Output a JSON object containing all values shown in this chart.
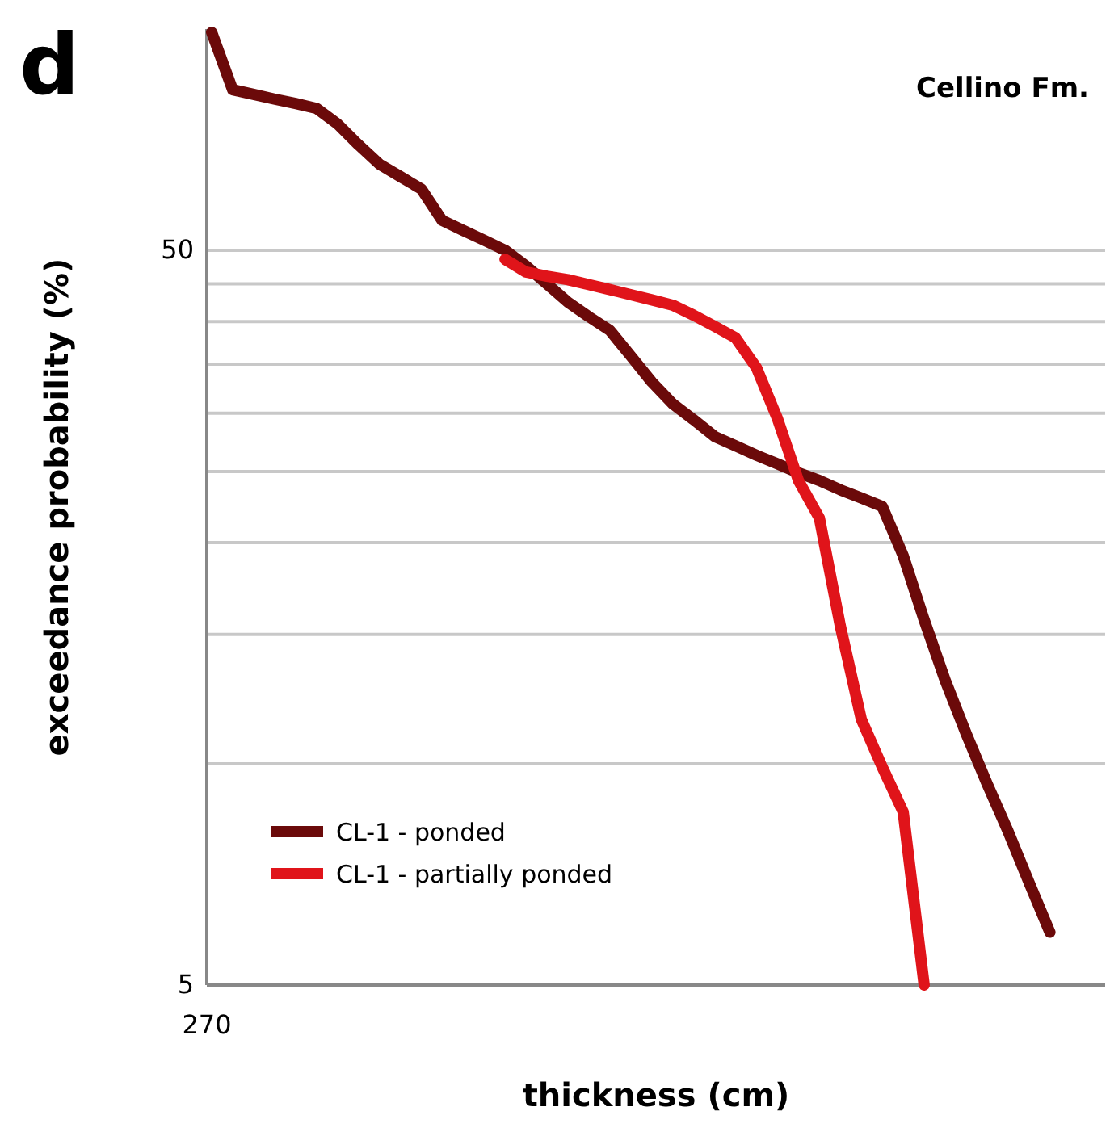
{
  "chart_data": {
    "type": "line",
    "title": "d",
    "xlabel": "thickness (cm)",
    "ylabel": "exceedance probability (%)",
    "annotations": [
      "Cellino Fm.",
      "270"
    ],
    "log": "y",
    "grid": "y",
    "legend": "bottom left",
    "line_style": "solid",
    "marker": "none",
    "categories": [
      null,
      null,
      null,
      null,
      null,
      null,
      null,
      null,
      null,
      null,
      null,
      null,
      null,
      null,
      null,
      null,
      null,
      null,
      null,
      null,
      null,
      null,
      null,
      null,
      null,
      null,
      null,
      null,
      null,
      null,
      null,
      null,
      null,
      null,
      null,
      null,
      null,
      null,
      null,
      null,
      null
    ],
    "ylim": [
      5,
      100
    ],
    "yticks": [
      5,
      {
        "value": 10,
        "label": null
      },
      {
        "value": 15,
        "label": null
      },
      {
        "value": 20,
        "label": null
      },
      {
        "value": 25,
        "label": null
      },
      {
        "value": 30,
        "label": null
      },
      {
        "value": 35,
        "label": null
      },
      {
        "value": 40,
        "label": null
      },
      {
        "value": 45,
        "label": null
      },
      50
    ],
    "series": [
      {
        "name": "CL-1 - ponded",
        "color": "#6b0a0a",
        "values": [
          99,
          82.7,
          81.5,
          80.3,
          79.2,
          78,
          74.3,
          69.6,
          65.5,
          63,
          60.6,
          54.9,
          53.2,
          51.6,
          50,
          47.6,
          45,
          42.5,
          40.6,
          38.9,
          35.9,
          33.1,
          30.9,
          29.4,
          27.9,
          27.1,
          26.3,
          25.6,
          24.9,
          24.3,
          23.6,
          23,
          22.4,
          19.2,
          15.7,
          13,
          11,
          9.4,
          8.1,
          6.9,
          5.9
        ]
      },
      {
        "name": "CL-1 - partially ponded",
        "color": "#e0141a",
        "values": [
          null,
          null,
          null,
          null,
          null,
          null,
          null,
          null,
          null,
          null,
          null,
          null,
          null,
          null,
          48.6,
          46.7,
          46.1,
          45.6,
          44.9,
          44.2,
          43.5,
          42.8,
          42.1,
          40.8,
          39.4,
          38,
          34.6,
          29.5,
          24.3,
          21.6,
          15.4,
          11.5,
          9.9,
          8.6,
          5,
          null,
          null,
          null,
          null,
          null,
          null
        ]
      }
    ]
  }
}
